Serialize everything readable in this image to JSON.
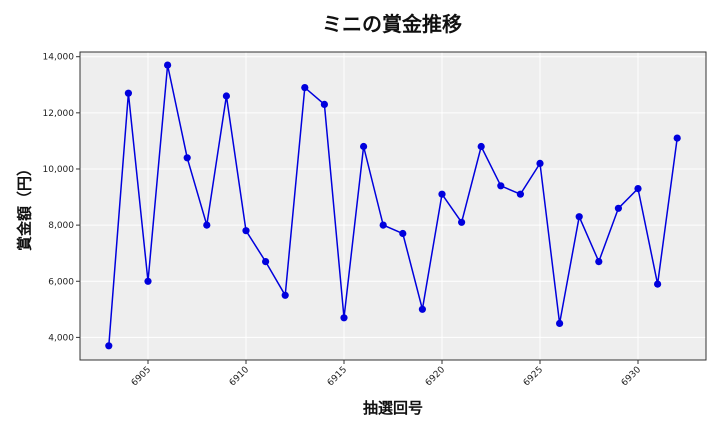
{
  "chart_data": {
    "type": "line",
    "title": "ミニの賞金推移",
    "xlabel": "抽選回号",
    "ylabel": "賞金額（円）",
    "x": [
      6903,
      6904,
      6905,
      6906,
      6907,
      6908,
      6909,
      6910,
      6911,
      6912,
      6913,
      6914,
      6915,
      6916,
      6917,
      6918,
      6919,
      6920,
      6921,
      6922,
      6923,
      6924,
      6925,
      6926,
      6927,
      6928,
      6929,
      6930,
      6931,
      6932
    ],
    "series": [
      {
        "name": "ミニ",
        "color": "#0000dd",
        "marker": "circle",
        "values": [
          3700,
          12700,
          6000,
          13700,
          10400,
          8000,
          12600,
          7800,
          6700,
          5500,
          12900,
          12300,
          4700,
          10800,
          8000,
          7700,
          5000,
          9100,
          8100,
          10800,
          9400,
          9100,
          10200,
          4500,
          8300,
          6700,
          8600,
          9300,
          5900,
          11100
        ]
      }
    ],
    "x_ticks": [
      6905,
      6910,
      6915,
      6920,
      6925,
      6930
    ],
    "y_ticks": [
      4000,
      6000,
      8000,
      10000,
      12000,
      14000
    ],
    "y_tick_labels": [
      "4,000",
      "6,000",
      "8,000",
      "10,000",
      "12,000",
      "14,000"
    ],
    "ylim": [
      3200,
      14200
    ],
    "xlim": [
      6901.4,
      6933.5
    ],
    "grid": true,
    "legend": "none",
    "plot_background": "#eeeeee"
  }
}
